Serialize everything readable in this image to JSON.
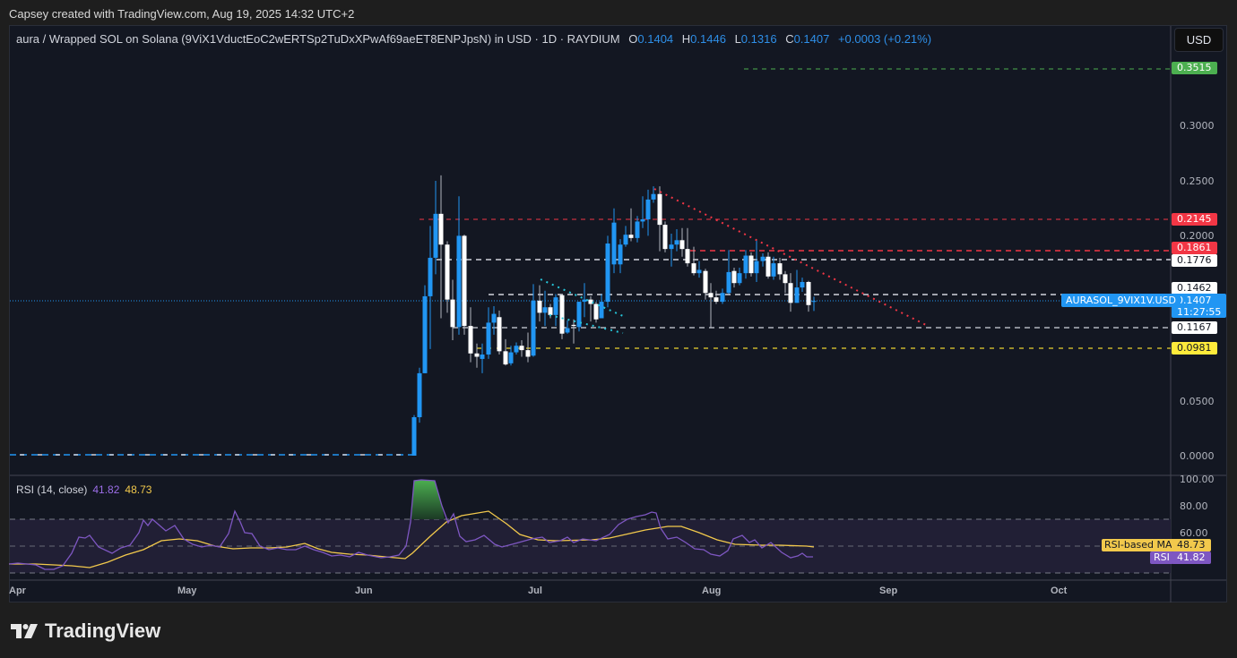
{
  "credit": "Capsey created with TradingView.com, Aug 19, 2025 14:32 UTC+2",
  "header": {
    "symbol_desc": "aura / Wrapped SOL on Solana (9ViX1VductEoC2wERTSp2TuDxXPwAf69aeET8ENPJpsN) in USD · 1D · RAYDIUM",
    "o_label": "O",
    "o": "0.1404",
    "h_label": "H",
    "h": "0.1446",
    "l_label": "L",
    "l": "0.1316",
    "c_label": "C",
    "c": "0.1407",
    "change": "+0.0003 (+0.21%)"
  },
  "currency_button": "USD",
  "price_axis": {
    "ticks": [
      "0.3000",
      "0.2500",
      "0.2000",
      "0.0500",
      "0.0000"
    ]
  },
  "tags": {
    "target": {
      "value": "0.3515",
      "color": "#4caf50"
    },
    "r1": {
      "value": "0.2145",
      "color": "#f23645"
    },
    "r2": {
      "value": "0.1861",
      "color": "#f23645"
    },
    "l1776": {
      "value": "0.1776",
      "color": "#ffffff"
    },
    "l1462": {
      "value": "0.1462",
      "color": "#ffffff"
    },
    "last": {
      "value": "0.1407",
      "countdown": "11:27:55",
      "color": "#2196f3"
    },
    "l1167": {
      "value": "0.1167",
      "color": "#ffffff"
    },
    "support": {
      "value": "0.0981",
      "color": "#ffeb3b"
    }
  },
  "symbol_tag": "AURASOL_9VIX1V.USD",
  "rsi": {
    "title": "RSI (14, close)",
    "value": "41.82",
    "ma_value": "48.73",
    "ma_tag_label": "RSI-based MA",
    "rsi_tag_label": "RSI",
    "axis_ticks": [
      "100.00",
      "80.00",
      "60.00"
    ]
  },
  "time_axis": [
    "Apr",
    "May",
    "Jun",
    "Jul",
    "Aug",
    "Sep",
    "Oct"
  ],
  "brand": "TradingView",
  "colors": {
    "up": "#2196f3",
    "down": "#ffffff",
    "rsi": "#7e57c2",
    "rsi_ma": "#f2c94c"
  },
  "chart_data": {
    "type": "candlestick",
    "title": "aura / Wrapped SOL on Solana · 1D · RAYDIUM",
    "timeframe": "1D",
    "ylim": [
      0,
      0.38
    ],
    "x_ticks": [
      "Apr",
      "May",
      "Jun",
      "Jul",
      "Aug",
      "Sep",
      "Oct"
    ],
    "y_ticks": [
      0.0,
      0.05,
      0.2,
      0.25,
      0.3
    ],
    "horizontal_levels": [
      {
        "price": 0.3515,
        "color": "green",
        "style": "dashed"
      },
      {
        "price": 0.2145,
        "color": "red",
        "style": "dashed"
      },
      {
        "price": 0.1861,
        "color": "red",
        "style": "dashed"
      },
      {
        "price": 0.1776,
        "color": "white",
        "style": "dashed"
      },
      {
        "price": 0.1462,
        "color": "white",
        "style": "dashed"
      },
      {
        "price": 0.1167,
        "color": "white",
        "style": "dashed"
      },
      {
        "price": 0.0981,
        "color": "yellow",
        "style": "dashed"
      }
    ],
    "last": {
      "open": 0.1404,
      "high": 0.1446,
      "low": 0.1316,
      "close": 0.1407,
      "change": 0.0003,
      "change_pct": 0.21
    },
    "candles": [
      [
        462,
        0.0,
        0.037,
        0.0,
        0.035
      ],
      [
        468,
        0.035,
        0.08,
        0.03,
        0.075
      ],
      [
        474,
        0.075,
        0.155,
        0.075,
        0.145
      ],
      [
        480,
        0.145,
        0.209,
        0.097,
        0.18
      ],
      [
        486,
        0.18,
        0.25,
        0.165,
        0.22
      ],
      [
        492,
        0.22,
        0.255,
        0.125,
        0.192
      ],
      [
        499,
        0.192,
        0.195,
        0.13,
        0.142
      ],
      [
        505,
        0.142,
        0.16,
        0.105,
        0.117
      ],
      [
        512,
        0.117,
        0.236,
        0.11,
        0.2
      ],
      [
        518,
        0.2,
        0.201,
        0.11,
        0.118
      ],
      [
        525,
        0.118,
        0.135,
        0.085,
        0.093
      ],
      [
        532,
        0.093,
        0.102,
        0.08,
        0.09
      ],
      [
        538,
        0.088,
        0.102,
        0.075,
        0.092
      ],
      [
        545,
        0.092,
        0.135,
        0.088,
        0.121
      ],
      [
        551,
        0.121,
        0.136,
        0.11,
        0.129
      ],
      [
        557,
        0.126,
        0.132,
        0.092,
        0.095
      ],
      [
        564,
        0.095,
        0.106,
        0.082,
        0.083
      ],
      [
        570,
        0.084,
        0.1,
        0.082,
        0.094
      ],
      [
        576,
        0.094,
        0.103,
        0.092,
        0.1
      ],
      [
        582,
        0.1,
        0.105,
        0.09,
        0.096
      ],
      [
        589,
        0.096,
        0.112,
        0.085,
        0.09
      ],
      [
        595,
        0.091,
        0.156,
        0.09,
        0.141
      ],
      [
        602,
        0.141,
        0.155,
        0.122,
        0.13
      ],
      [
        608,
        0.13,
        0.15,
        0.118,
        0.135
      ],
      [
        614,
        0.135,
        0.138,
        0.125,
        0.128
      ],
      [
        620,
        0.128,
        0.147,
        0.118,
        0.144
      ],
      [
        627,
        0.146,
        0.147,
        0.106,
        0.111
      ],
      [
        633,
        0.112,
        0.123,
        0.111,
        0.116
      ],
      [
        640,
        0.119,
        0.124,
        0.102,
        0.118
      ],
      [
        646,
        0.117,
        0.14,
        0.113,
        0.14
      ],
      [
        652,
        0.14,
        0.157,
        0.126,
        0.142
      ],
      [
        659,
        0.142,
        0.145,
        0.122,
        0.138
      ],
      [
        665,
        0.138,
        0.14,
        0.121,
        0.124
      ],
      [
        671,
        0.125,
        0.147,
        0.125,
        0.14
      ],
      [
        678,
        0.14,
        0.2,
        0.135,
        0.193
      ],
      [
        685,
        0.174,
        0.225,
        0.166,
        0.212
      ],
      [
        692,
        0.174,
        0.197,
        0.166,
        0.192
      ],
      [
        698,
        0.192,
        0.209,
        0.19,
        0.201
      ],
      [
        704,
        0.201,
        0.225,
        0.195,
        0.198
      ],
      [
        711,
        0.198,
        0.218,
        0.194,
        0.213
      ],
      [
        717,
        0.213,
        0.236,
        0.207,
        0.215
      ],
      [
        723,
        0.215,
        0.242,
        0.2,
        0.233
      ],
      [
        729,
        0.233,
        0.245,
        0.23,
        0.238
      ],
      [
        736,
        0.238,
        0.245,
        0.186,
        0.21
      ],
      [
        742,
        0.21,
        0.213,
        0.185,
        0.188
      ],
      [
        749,
        0.188,
        0.202,
        0.172,
        0.192
      ],
      [
        755,
        0.192,
        0.206,
        0.186,
        0.196
      ],
      [
        761,
        0.196,
        0.207,
        0.181,
        0.188
      ],
      [
        767,
        0.188,
        0.207,
        0.172,
        0.175
      ],
      [
        774,
        0.175,
        0.19,
        0.164,
        0.166
      ],
      [
        780,
        0.166,
        0.177,
        0.162,
        0.169
      ],
      [
        787,
        0.168,
        0.17,
        0.142,
        0.148
      ],
      [
        793,
        0.148,
        0.157,
        0.116,
        0.144
      ],
      [
        799,
        0.144,
        0.15,
        0.138,
        0.14
      ],
      [
        806,
        0.14,
        0.152,
        0.138,
        0.148
      ],
      [
        813,
        0.148,
        0.187,
        0.147,
        0.167
      ],
      [
        819,
        0.168,
        0.171,
        0.153,
        0.157
      ],
      [
        825,
        0.157,
        0.171,
        0.155,
        0.166
      ],
      [
        832,
        0.166,
        0.187,
        0.161,
        0.182
      ],
      [
        838,
        0.182,
        0.185,
        0.163,
        0.166
      ],
      [
        844,
        0.166,
        0.196,
        0.158,
        0.177
      ],
      [
        851,
        0.177,
        0.184,
        0.172,
        0.181
      ],
      [
        857,
        0.181,
        0.185,
        0.161,
        0.163
      ],
      [
        863,
        0.163,
        0.181,
        0.16,
        0.175
      ],
      [
        870,
        0.175,
        0.18,
        0.16,
        0.165
      ],
      [
        876,
        0.165,
        0.168,
        0.148,
        0.157
      ],
      [
        882,
        0.157,
        0.166,
        0.131,
        0.139
      ],
      [
        889,
        0.139,
        0.169,
        0.139,
        0.153
      ],
      [
        895,
        0.153,
        0.162,
        0.149,
        0.158
      ],
      [
        902,
        0.158,
        0.159,
        0.131,
        0.137
      ],
      [
        908,
        0.1404,
        0.1446,
        0.1316,
        0.1407
      ]
    ],
    "trendlines": [
      {
        "color": "red",
        "style": "dotted",
        "points": [
          [
            730,
            211
          ],
          [
            1035,
            364
          ]
        ]
      },
      {
        "color": "cyan",
        "style": "dotted",
        "points": [
          [
            603,
            312
          ],
          [
            695,
            353
          ]
        ]
      },
      {
        "color": "cyan",
        "style": "dotted",
        "points": [
          [
            613,
            352
          ],
          [
            695,
            372
          ]
        ]
      }
    ],
    "rsi": {
      "period": 14,
      "source": "close",
      "ylim": [
        0,
        100
      ],
      "bands": [
        30,
        50,
        70
      ],
      "last_rsi": 41.82,
      "last_ma": 48.73,
      "rsi_points": "10,630 20,629 40,631 50,636 60,636 70,632 80,618 88,600 95,601 100,598 110,611 125,618 135,612 145,609 155,595 160,581 165,587 170,580 185,593 195,587 205,602 215,608 225,611 235,609 245,611 255,596 262,571 268,583 273,595 281,596 290,610 300,614 310,612 320,614 330,614 340,610 350,614 360,617 370,621 380,620 390,622 400,617 410,620 425,623 435,622 445,620 453,610 458,583 462,537 470,536 485,537 493,565 500,584 506,574 513,599 520,605 530,603 540,598 552,608 560,611 575,607 593,602 605,600 613,606 625,604 633,600 640,606 650,602 665,604 680,597 690,586 700,580 710,577 720,575 727,572 732,573 737,590 745,602 755,600 765,606 775,613 785,614 793,619 803,621 812,615 818,602 828,598 836,606 842,603 850,612 860,606 872,617 882,623 890,621 895,618 900,622 907,622",
      "ma_points": "10,630 40,630 60,631 80,632 100,634 120,628 140,620 160,614 180,604 200,602 220,604 240,610 260,613 280,612 300,612 320,611 340,607 355,613 370,617 390,619 410,620 430,622 452,624 460,618 480,599 498,583 515,576 545,571 565,585 580,597 600,603 620,604 660,603 680,601 720,592 745,588 760,588 780,595 800,603 820,608 850,609 870,609 900,610 908,611"
    }
  }
}
